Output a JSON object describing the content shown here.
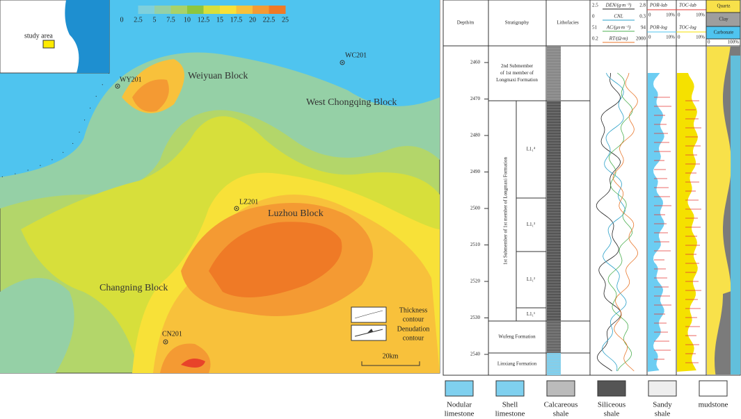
{
  "map": {
    "colorbar_ticks": [
      0,
      2.5,
      5,
      7.5,
      10,
      12.5,
      15,
      17.5,
      20,
      22.5,
      25
    ],
    "inset_label": "study area",
    "wells": [
      "WY201",
      "WC201",
      "LZ201",
      "CN201"
    ],
    "blocks": [
      "Weiyuan Block",
      "West Chongqing Block",
      "Luzhou Block",
      "Changning Block"
    ],
    "legend": [
      [
        "Thickness",
        "contour"
      ],
      [
        "Denudation",
        "contour"
      ]
    ],
    "scale_bar": "20km"
  },
  "log": {
    "headers": {
      "depth": "Depth/m",
      "stratigraphy": "Stratigraphy",
      "lithofacies": "Lithofacies"
    },
    "curves": [
      {
        "min": "2.5",
        "name": "DEN/(g·m⁻³)",
        "max": "2.8"
      },
      {
        "min": "0",
        "name": "CNL",
        "max": "0.3"
      },
      {
        "min": "51",
        "name": "AC/(μs·m⁻¹)",
        "max": "94"
      },
      {
        "min": "0.2",
        "name": "RT/(Ω·m)",
        "max": "2000"
      }
    ],
    "por": {
      "lab": "POR-lab",
      "log": "POR-log",
      "min": "0",
      "max": "10%"
    },
    "toc": {
      "lab": "TOC-lab",
      "log": "TOC-log",
      "min": "0",
      "max": "10%"
    },
    "mineral": {
      "names": [
        "Quartz",
        "Clay",
        "Carbonate"
      ],
      "min": "0",
      "max": "100%"
    },
    "depths": [
      2460,
      2470,
      2480,
      2490,
      2500,
      2510,
      2520,
      2530,
      2540
    ],
    "units": [
      [
        "2nd Submember",
        "of 1st member of",
        "Longmaxi Formation"
      ],
      [
        "1st Submember of 1st member of Longmaxi Formation"
      ],
      [
        "Wufeng Formation"
      ],
      [
        "Linxiang Formation"
      ]
    ],
    "subunits": [
      "L1₁⁴",
      "L1₁³",
      "L1₁²",
      "L1₁¹"
    ],
    "lithology_legend": [
      [
        "Nodular",
        "limestone"
      ],
      [
        "Shell",
        "limestone"
      ],
      [
        "Calcareous",
        "shale"
      ],
      [
        "Siliceous",
        "shale"
      ],
      [
        "Sandy",
        "shale"
      ],
      [
        "mudstone"
      ]
    ]
  }
}
